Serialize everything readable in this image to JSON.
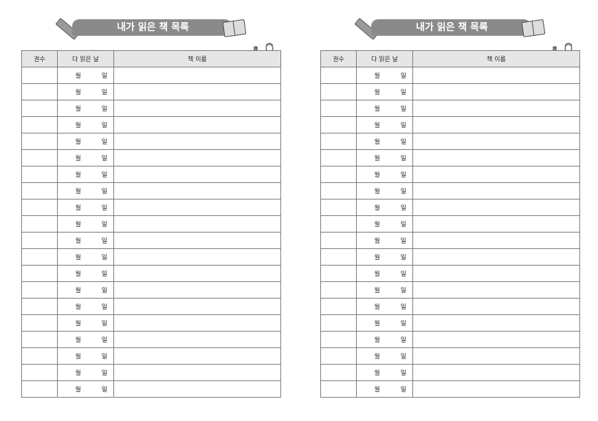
{
  "title": "내가 읽은 책 목록",
  "columns": {
    "count": "권수",
    "finished_date": "다 읽은 날",
    "book_name": "책 이름"
  },
  "month_label": "월",
  "day_label": "일",
  "rows_per_page": 20,
  "pages": [
    "left",
    "right"
  ],
  "colors": {
    "banner": "#8a8a8a",
    "header": "#e6e6e6",
    "border": "#777777"
  },
  "icons": [
    "pencil-icon",
    "open-book-icon",
    "kid-with-cart-illustration"
  ]
}
